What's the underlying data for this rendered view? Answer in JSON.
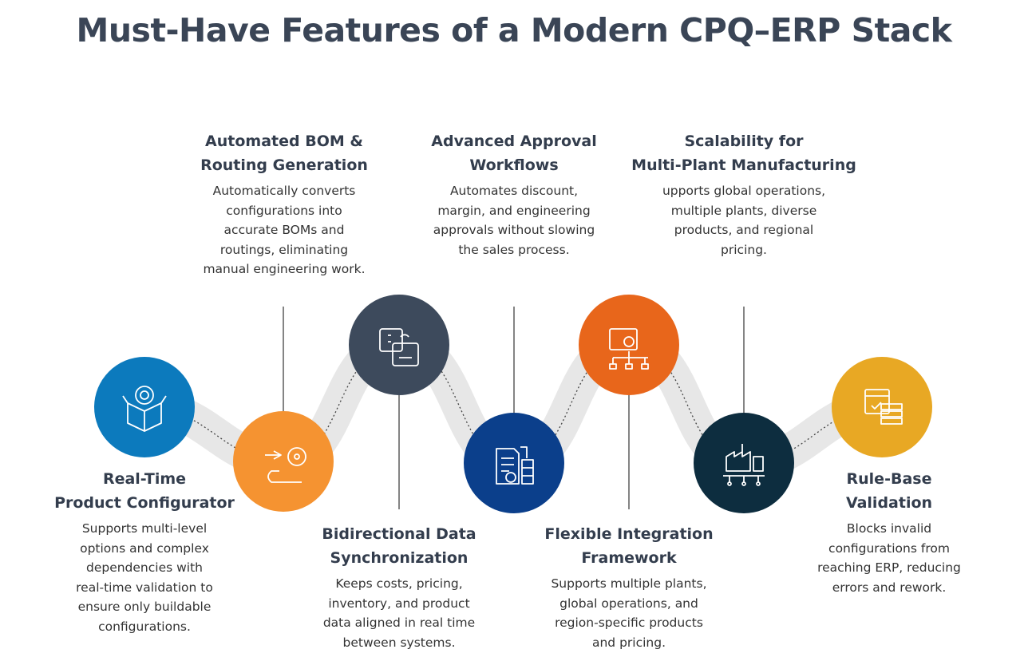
{
  "title": "Must-Have Features of a Modern CPQ–ERP Stack",
  "features": [
    {
      "title": [
        "Real-Time",
        "Product Configurator"
      ],
      "description": [
        "Supports multi-level",
        "options and complex",
        "dependencies with",
        "real-time validation to",
        "ensure only buildable",
        "configurations."
      ]
    },
    {
      "title": [
        "Automated BOM &",
        "Routing Generation"
      ],
      "description": [
        "Automatically converts",
        "configurations into",
        "accurate BOMs and",
        "routings, eliminating",
        "manual engineering work."
      ]
    },
    {
      "title": [
        "Bidirectional Data",
        "Synchronization"
      ],
      "description": [
        "Keeps costs, pricing,",
        "inventory, and product",
        "data aligned in real time",
        "between systems."
      ]
    },
    {
      "title": [
        "Advanced Approval",
        "Workflows"
      ],
      "description": [
        "Automates discount,",
        "margin, and engineering",
        "approvals without slowing",
        "the sales process."
      ]
    },
    {
      "title": [
        "Flexible Integration",
        "Framework"
      ],
      "description": [
        "Supports multiple plants,",
        "global operations, and",
        "region-specific products",
        "and pricing."
      ]
    },
    {
      "title": [
        "Scalability for",
        "Multi-Plant Manufacturing"
      ],
      "description": [
        "upports global operations,",
        "multiple plants, diverse",
        "products, and regional",
        "pricing."
      ]
    },
    {
      "title": [
        "Rule-Base",
        "Validation"
      ],
      "description": [
        "Blocks invalid",
        "configurations from",
        "reaching ERP, reducing",
        "errors and rework."
      ]
    }
  ]
}
